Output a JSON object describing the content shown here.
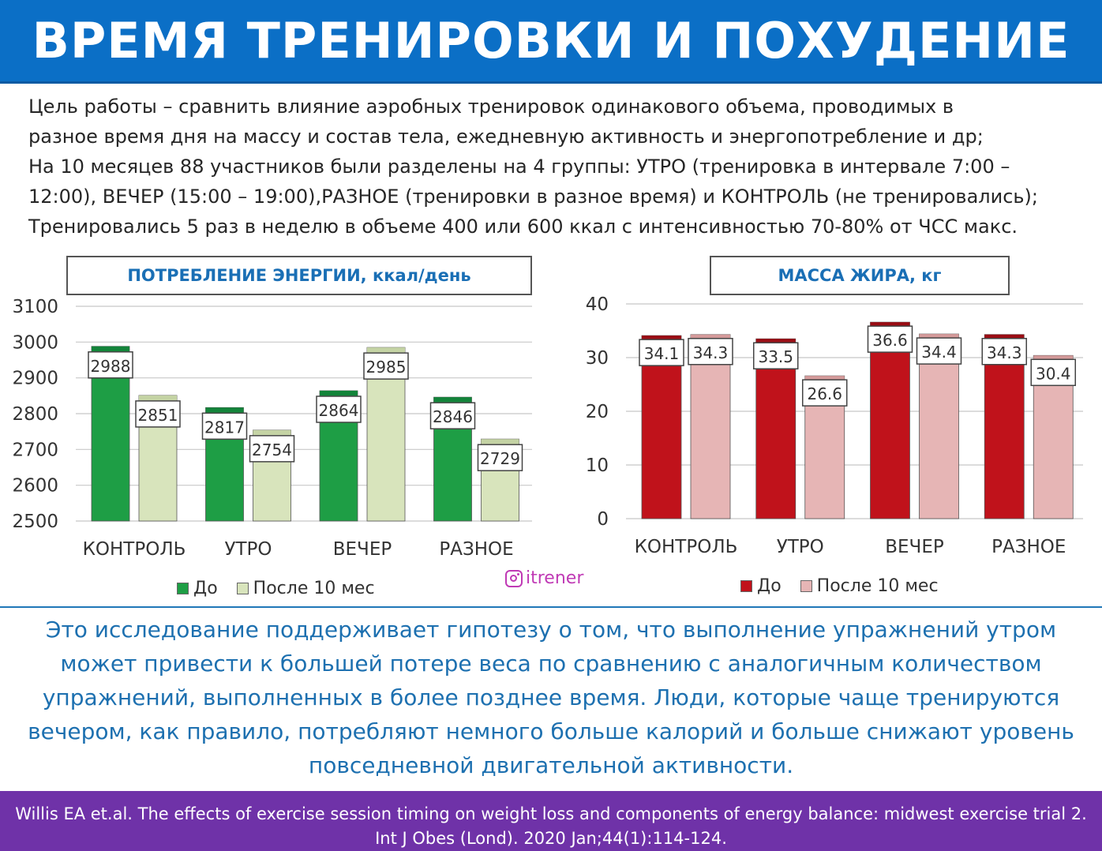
{
  "header": {
    "title": "ВРЕМЯ ТРЕНИРОВКИ И ПОХУДЕНИЕ"
  },
  "intro": {
    "lines": [
      "Цель работы – сравнить влияние аэробных тренировок одинакового объема, проводимых в",
      "разное время дня на массу и состав тела, ежедневную активность и энергопотребление и др;",
      "На 10 месяцев 88 участников были разделены на 4 группы: УТРО (тренировка в интервале 7:00 –",
      "12:00), ВЕЧЕР (15:00 – 19:00),РАЗНОЕ (тренировки в разное время) и КОНТРОЛЬ (не тренировались);",
      "Тренировались 5 раз в неделю в объеме 400 или 600 ккал с интенсивностью 70-80% от ЧСС макс."
    ]
  },
  "chart_data": [
    {
      "type": "bar",
      "title": "ПОТРЕБЛЕНИЕ ЭНЕРГИИ, ккал/день",
      "categories": [
        "КОНТРОЛЬ",
        "УТРО",
        "ВЕЧЕР",
        "РАЗНОЕ"
      ],
      "series": [
        {
          "name": "До",
          "values": [
            2988,
            2817,
            2864,
            2846
          ],
          "color": "#1e9e45",
          "top_color": "#13843a"
        },
        {
          "name": "После 10 мес",
          "values": [
            2851,
            2754,
            2985,
            2729
          ],
          "color": "#d8e4bc",
          "top_color": "#c4d3a4"
        }
      ],
      "ylim": [
        2500,
        3100
      ],
      "yticks": [
        2500,
        2600,
        2700,
        2800,
        2900,
        3000,
        3100
      ],
      "grid": true,
      "legend": "bottom"
    },
    {
      "type": "bar",
      "title": "МАССА ЖИРА, кг",
      "categories": [
        "КОНТРОЛЬ",
        "УТРО",
        "ВЕЧЕР",
        "РАЗНОЕ"
      ],
      "series": [
        {
          "name": "До",
          "values": [
            34.1,
            33.5,
            36.6,
            34.3
          ],
          "color": "#c0121b",
          "top_color": "#9a0d14"
        },
        {
          "name": "После 10 мес",
          "values": [
            34.3,
            26.6,
            34.4,
            30.4
          ],
          "color": "#e6b5b5",
          "top_color": "#d49a9a"
        }
      ],
      "ylim": [
        0,
        40
      ],
      "yticks": [
        0,
        10,
        20,
        30,
        40
      ],
      "grid": true,
      "legend": "bottom"
    }
  ],
  "watermark": {
    "text": "itrener"
  },
  "conclusion": {
    "lines": [
      "Это исследование поддерживает гипотезу о том, что выполнение упражнений утром",
      "может привести к большей потере веса по сравнению с аналогичным количеством",
      "упражнений, выполненных в более позднее время. Люди, которые чаще тренируются",
      "вечером, как правило, потребляют немного больше калорий и больше снижают уровень",
      "повседневной двигательной активности."
    ]
  },
  "footer": {
    "lines": [
      "Willis EA et.al. The effects of exercise session timing on weight loss and components of energy balance: midwest exercise trial 2.",
      "Int J Obes (Lond). 2020 Jan;44(1):114-124."
    ]
  }
}
